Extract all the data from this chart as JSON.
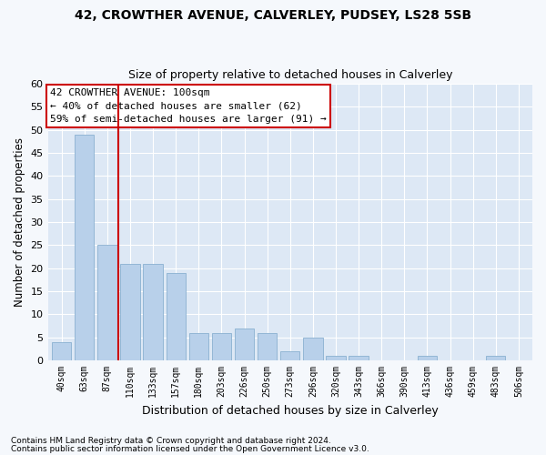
{
  "title_line1": "42, CROWTHER AVENUE, CALVERLEY, PUDSEY, LS28 5SB",
  "title_line2": "Size of property relative to detached houses in Calverley",
  "xlabel": "Distribution of detached houses by size in Calverley",
  "ylabel": "Number of detached properties",
  "categories": [
    "40sqm",
    "63sqm",
    "87sqm",
    "110sqm",
    "133sqm",
    "157sqm",
    "180sqm",
    "203sqm",
    "226sqm",
    "250sqm",
    "273sqm",
    "296sqm",
    "320sqm",
    "343sqm",
    "366sqm",
    "390sqm",
    "413sqm",
    "436sqm",
    "459sqm",
    "483sqm",
    "506sqm"
  ],
  "values": [
    4,
    49,
    25,
    21,
    21,
    19,
    6,
    6,
    7,
    6,
    2,
    5,
    1,
    1,
    0,
    0,
    1,
    0,
    0,
    1,
    0
  ],
  "bar_color": "#b8d0ea",
  "bar_edgecolor": "#8ab0d0",
  "vline_x": 2.5,
  "vline_color": "#cc0000",
  "annotation_line1": "42 CROWTHER AVENUE: 100sqm",
  "annotation_line2": "← 40% of detached houses are smaller (62)",
  "annotation_line3": "59% of semi-detached houses are larger (91) →",
  "annotation_box_color": "#cc0000",
  "ylim": [
    0,
    60
  ],
  "yticks": [
    0,
    5,
    10,
    15,
    20,
    25,
    30,
    35,
    40,
    45,
    50,
    55,
    60
  ],
  "background_color": "#dde8f5",
  "fig_background_color": "#f5f8fc",
  "grid_color": "#ffffff",
  "footnote1": "Contains HM Land Registry data © Crown copyright and database right 2024.",
  "footnote2": "Contains public sector information licensed under the Open Government Licence v3.0."
}
